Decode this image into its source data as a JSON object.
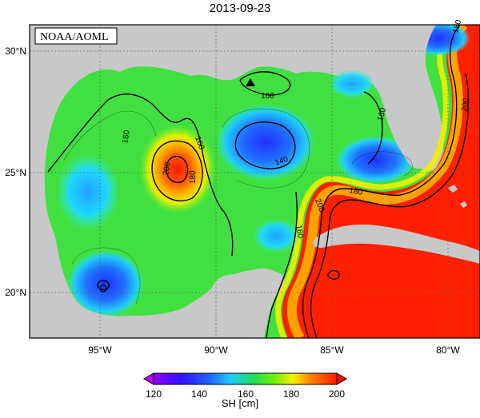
{
  "title": "2013-09-23",
  "credit": "NOAA/AOML",
  "axes": {
    "x_ticks": [
      "95°W",
      "90°W",
      "85°W",
      "80°W"
    ],
    "y_ticks": [
      "30°N",
      "25°N",
      "20°N"
    ]
  },
  "contour_labels": [
    "160",
    "160",
    "160",
    "160",
    "140",
    "200",
    "180",
    "160",
    "180",
    "200",
    "200",
    "180"
  ],
  "colorbar": {
    "label": "SH [cm]",
    "ticks": [
      "120",
      "140",
      "160",
      "180",
      "200"
    ],
    "range": [
      120,
      200
    ]
  },
  "colors": {
    "land": "#c8c8c8",
    "low": "#9000ff",
    "blue": "#2040ff",
    "cyan": "#20d8ff",
    "green": "#20e020",
    "yellow": "#f8f000",
    "orange": "#ff8000",
    "red": "#ff1a00"
  }
}
